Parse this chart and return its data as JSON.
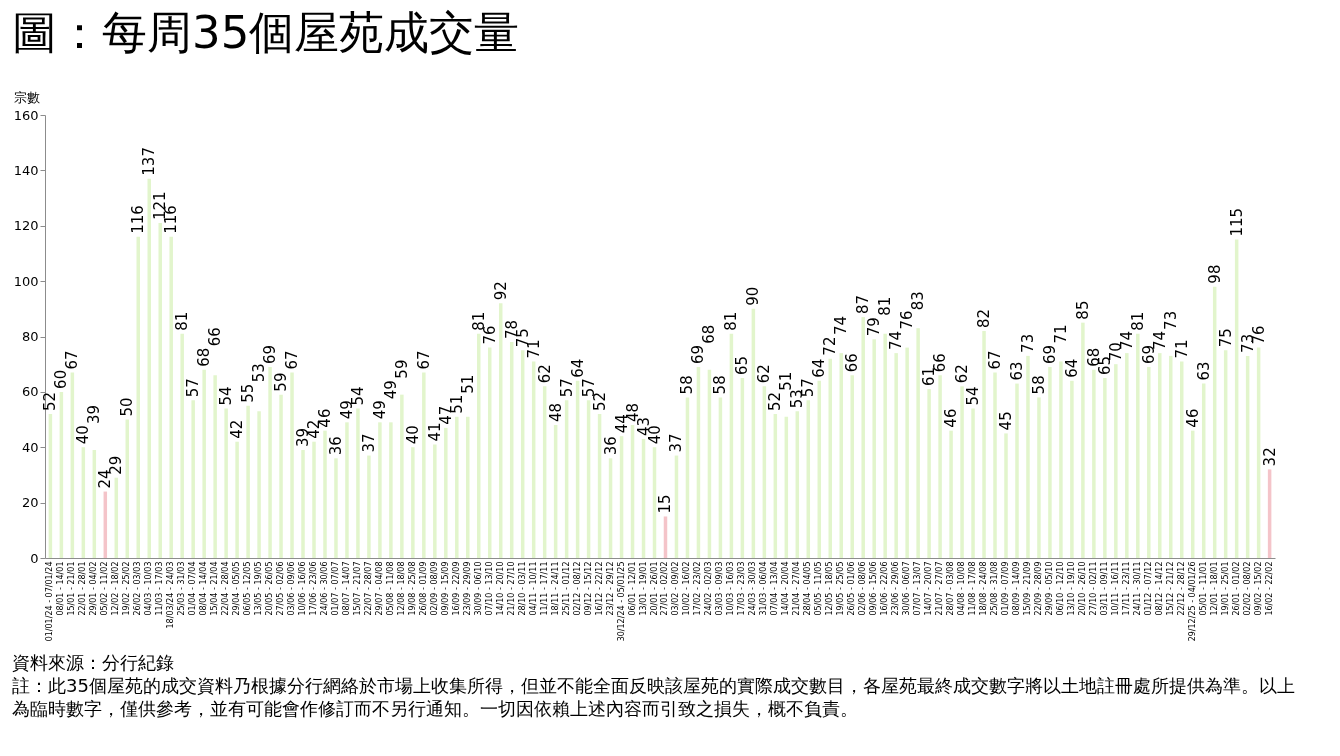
{
  "chart_data": {
    "type": "bar",
    "title": "圖：每周35個屋苑成交量",
    "ylabel": "宗數",
    "categories": [
      "01/01/24 - 07/01/24",
      "08/01 - 14/01",
      "15/01 - 21/01",
      "22/01 - 28/01",
      "29/01 - 04/02",
      "05/02 - 11/02",
      "12/02 - 18/02",
      "19/02 - 25/02",
      "26/02 - 03/03",
      "04/03 - 10/03",
      "11/03 - 17/03",
      "18/03/24 - 24/03",
      "25/03 - 31/03",
      "01/04 - 07/04",
      "08/04 - 14/04",
      "15/04 - 21/04",
      "22/04 - 28/04",
      "29/04 - 05/05",
      "06/05 - 12/05",
      "13/05 - 19/05",
      "20/05 - 26/05",
      "27/05 - 02/06",
      "03/06 - 09/06",
      "10/06 - 16/06",
      "17/06 - 23/06",
      "24/06 - 30/06",
      "01/07 - 07/07",
      "08/07 - 14/07",
      "15/07 - 21/07",
      "22/07 - 28/07",
      "29/07 - 04/08",
      "05/08 - 11/08",
      "12/08 - 18/08",
      "19/08 - 25/08",
      "26/08 - 01/09",
      "02/09 - 08/09",
      "09/09 - 15/09",
      "16/09 - 22/09",
      "23/09 - 29/09",
      "30/09 - 06/10",
      "07/10 - 13/10",
      "14/10 - 20/10",
      "21/10 - 27/10",
      "28/10 - 03/11",
      "04/11 - 10/11",
      "11/11 - 17/11",
      "18/11 - 24/11",
      "25/11 - 01/12",
      "02/12 - 08/12",
      "09/12 - 15/12",
      "16/12 - 22/12",
      "23/12 - 29/12",
      "30/12/24 - 05/01/25",
      "06/01 - 12/01",
      "13/01 - 19/01",
      "20/01 - 26/01",
      "27/01 - 02/02",
      "03/02 - 09/02",
      "10/02 - 16/02",
      "17/02 - 23/02",
      "24/02 - 02/03",
      "03/03 - 09/03",
      "10/03 - 16/03",
      "17/03 - 23/03",
      "24/03 - 30/03",
      "31/03 - 06/04",
      "07/04 - 13/04",
      "14/04 - 20/04",
      "21/04 - 27/04",
      "28/04 - 04/05",
      "05/05 - 11/05",
      "12/05 - 18/05",
      "19/05 - 25/05",
      "26/05 - 01/06",
      "02/06 - 08/06",
      "09/06 - 15/06",
      "16/06 - 22/06",
      "23/06 - 29/06",
      "30/06 - 06/07",
      "07/07 - 13/07",
      "14/07 - 20/07",
      "21/07 - 27/07",
      "28/07 - 03/08",
      "04/08 - 10/08",
      "11/08 - 17/08",
      "18/08 - 24/08",
      "25/08 - 31/08",
      "01/09 - 07/09",
      "08/09 - 14/09",
      "15/09 - 21/09",
      "22/09 - 28/09",
      "29/09 - 05/10",
      "06/10 - 12/10",
      "13/10 - 19/10",
      "20/10 - 26/10",
      "27/10 - 02/11",
      "03/11 - 09/11",
      "10/11 - 16/11",
      "17/11 - 23/11",
      "24/11 - 30/11",
      "01/12 - 07/12",
      "08/12 - 14/12",
      "15/12 - 21/12",
      "22/12 - 28/12",
      "29/12/25 - 04/01/26",
      "05/01 - 11/01",
      "12/01 - 18/01",
      "19/01 - 25/01",
      "26/01 - 01/02",
      "02/02 - 08/02",
      "09/02 - 15/02",
      "16/02 - 22/02"
    ],
    "values": [
      52,
      60,
      67,
      40,
      39,
      24,
      29,
      50,
      116,
      137,
      121,
      116,
      81,
      57,
      68,
      66,
      54,
      42,
      55,
      53,
      69,
      59,
      67,
      39,
      42,
      46,
      36,
      49,
      54,
      37,
      49,
      49,
      59,
      40,
      67,
      41,
      47,
      51,
      51,
      81,
      76,
      92,
      78,
      75,
      71,
      62,
      48,
      57,
      64,
      57,
      52,
      36,
      44,
      48,
      43,
      40,
      15,
      37,
      58,
      69,
      68,
      58,
      81,
      65,
      90,
      62,
      52,
      51,
      53,
      57,
      64,
      72,
      74,
      66,
      87,
      79,
      81,
      74,
      76,
      83,
      61,
      66,
      46,
      62,
      54,
      82,
      67,
      45,
      63,
      73,
      58,
      69,
      71,
      64,
      85,
      68,
      65,
      70,
      74,
      81,
      69,
      74,
      73,
      71,
      46,
      63,
      98,
      75,
      115,
      73,
      76,
      32
    ],
    "colors": [
      "#e2f5cc",
      "#e2f5cc",
      "#e2f5cc",
      "#e2f5cc",
      "#e2f5cc",
      "#f4c4c9",
      "#e2f5cc",
      "#e2f5cc",
      "#e2f5cc",
      "#e2f5cc",
      "#e2f5cc",
      "#e2f5cc",
      "#e2f5cc",
      "#e2f5cc",
      "#e2f5cc",
      "#e2f5cc",
      "#e2f5cc",
      "#e2f5cc",
      "#e2f5cc",
      "#e2f5cc",
      "#e2f5cc",
      "#e2f5cc",
      "#e2f5cc",
      "#e2f5cc",
      "#e2f5cc",
      "#e2f5cc",
      "#e2f5cc",
      "#e2f5cc",
      "#e2f5cc",
      "#e2f5cc",
      "#e2f5cc",
      "#e2f5cc",
      "#e2f5cc",
      "#e2f5cc",
      "#e2f5cc",
      "#e2f5cc",
      "#e2f5cc",
      "#e2f5cc",
      "#e2f5cc",
      "#e2f5cc",
      "#e2f5cc",
      "#e2f5cc",
      "#e2f5cc",
      "#e2f5cc",
      "#e2f5cc",
      "#e2f5cc",
      "#e2f5cc",
      "#e2f5cc",
      "#e2f5cc",
      "#e2f5cc",
      "#e2f5cc",
      "#e2f5cc",
      "#e2f5cc",
      "#e2f5cc",
      "#e2f5cc",
      "#e2f5cc",
      "#f4c4c9",
      "#e2f5cc",
      "#e2f5cc",
      "#e2f5cc",
      "#e2f5cc",
      "#e2f5cc",
      "#e2f5cc",
      "#e2f5cc",
      "#e2f5cc",
      "#e2f5cc",
      "#e2f5cc",
      "#e2f5cc",
      "#e2f5cc",
      "#e2f5cc",
      "#e2f5cc",
      "#e2f5cc",
      "#e2f5cc",
      "#e2f5cc",
      "#e2f5cc",
      "#e2f5cc",
      "#e2f5cc",
      "#e2f5cc",
      "#e2f5cc",
      "#e2f5cc",
      "#e2f5cc",
      "#e2f5cc",
      "#e2f5cc",
      "#e2f5cc",
      "#e2f5cc",
      "#e2f5cc",
      "#e2f5cc",
      "#e2f5cc",
      "#e2f5cc",
      "#e2f5cc",
      "#e2f5cc",
      "#e2f5cc",
      "#e2f5cc",
      "#e2f5cc",
      "#e2f5cc",
      "#e2f5cc",
      "#e2f5cc",
      "#e2f5cc",
      "#e2f5cc",
      "#e2f5cc",
      "#e2f5cc",
      "#e2f5cc",
      "#e2f5cc",
      "#e2f5cc",
      "#e2f5cc",
      "#e2f5cc",
      "#e2f5cc",
      "#e2f5cc",
      "#e2f5cc",
      "#e2f5cc",
      "#e2f5cc",
      "#f4c4c9"
    ],
    "ylim": [
      0,
      160
    ],
    "yticks": [
      0,
      20,
      40,
      60,
      80,
      100,
      120,
      140,
      160
    ],
    "data_labels": true,
    "annotations": [
      "資料來源：分行紀錄",
      "註：此35個屋苑的成交資料乃根據分行網絡於市場上收集所得，但並不能全面反映該屋苑的實際成交數目，各屋苑最終成交數字將以土地註冊處所提供為準。以上為臨時數字，僅供參考，並有可能會作修訂而不另行通知。一切因依賴上述內容而引致之損失，概不負責。"
    ]
  }
}
